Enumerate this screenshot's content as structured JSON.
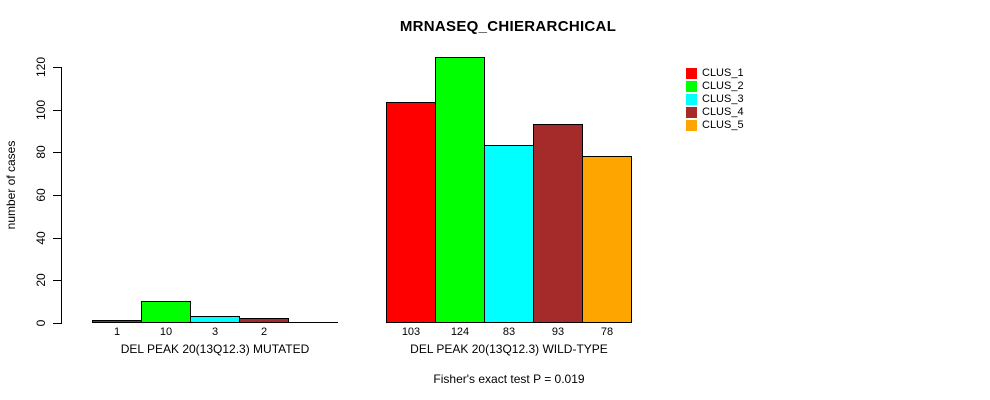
{
  "chart_data": {
    "type": "bar",
    "title": "MRNASEQ_CHIERARCHICAL",
    "ylabel": "number of cases",
    "xlabel": "",
    "yticks": [
      0,
      20,
      40,
      60,
      80,
      100,
      120
    ],
    "ylim": [
      0,
      130
    ],
    "grid": false,
    "legend_position": "top-right",
    "series": [
      "CLUS_1",
      "CLUS_2",
      "CLUS_3",
      "CLUS_4",
      "CLUS_5"
    ],
    "colors": [
      "#FF0000",
      "#00FF00",
      "#00FFFF",
      "#A52A2A",
      "#FFA500"
    ],
    "groups": [
      {
        "label": "DEL PEAK 20(13Q12.3) MUTATED",
        "values": [
          1,
          10,
          3,
          2,
          0
        ],
        "bar_labels": [
          "1",
          "10",
          "3",
          "2",
          ""
        ]
      },
      {
        "label": "DEL PEAK 20(13Q12.3) WILD-TYPE",
        "values": [
          103,
          124,
          83,
          93,
          78
        ],
        "bar_labels": [
          "103",
          "124",
          "83",
          "93",
          "78"
        ]
      }
    ],
    "annotation": "Fisher's exact test P = 0.019"
  },
  "legend": {
    "entries": [
      {
        "label": "CLUS_1",
        "color": "#FF0000"
      },
      {
        "label": "CLUS_2",
        "color": "#00FF00"
      },
      {
        "label": "CLUS_3",
        "color": "#00FFFF"
      },
      {
        "label": "CLUS_4",
        "color": "#A52A2A"
      },
      {
        "label": "CLUS_5",
        "color": "#FFA500"
      }
    ]
  }
}
